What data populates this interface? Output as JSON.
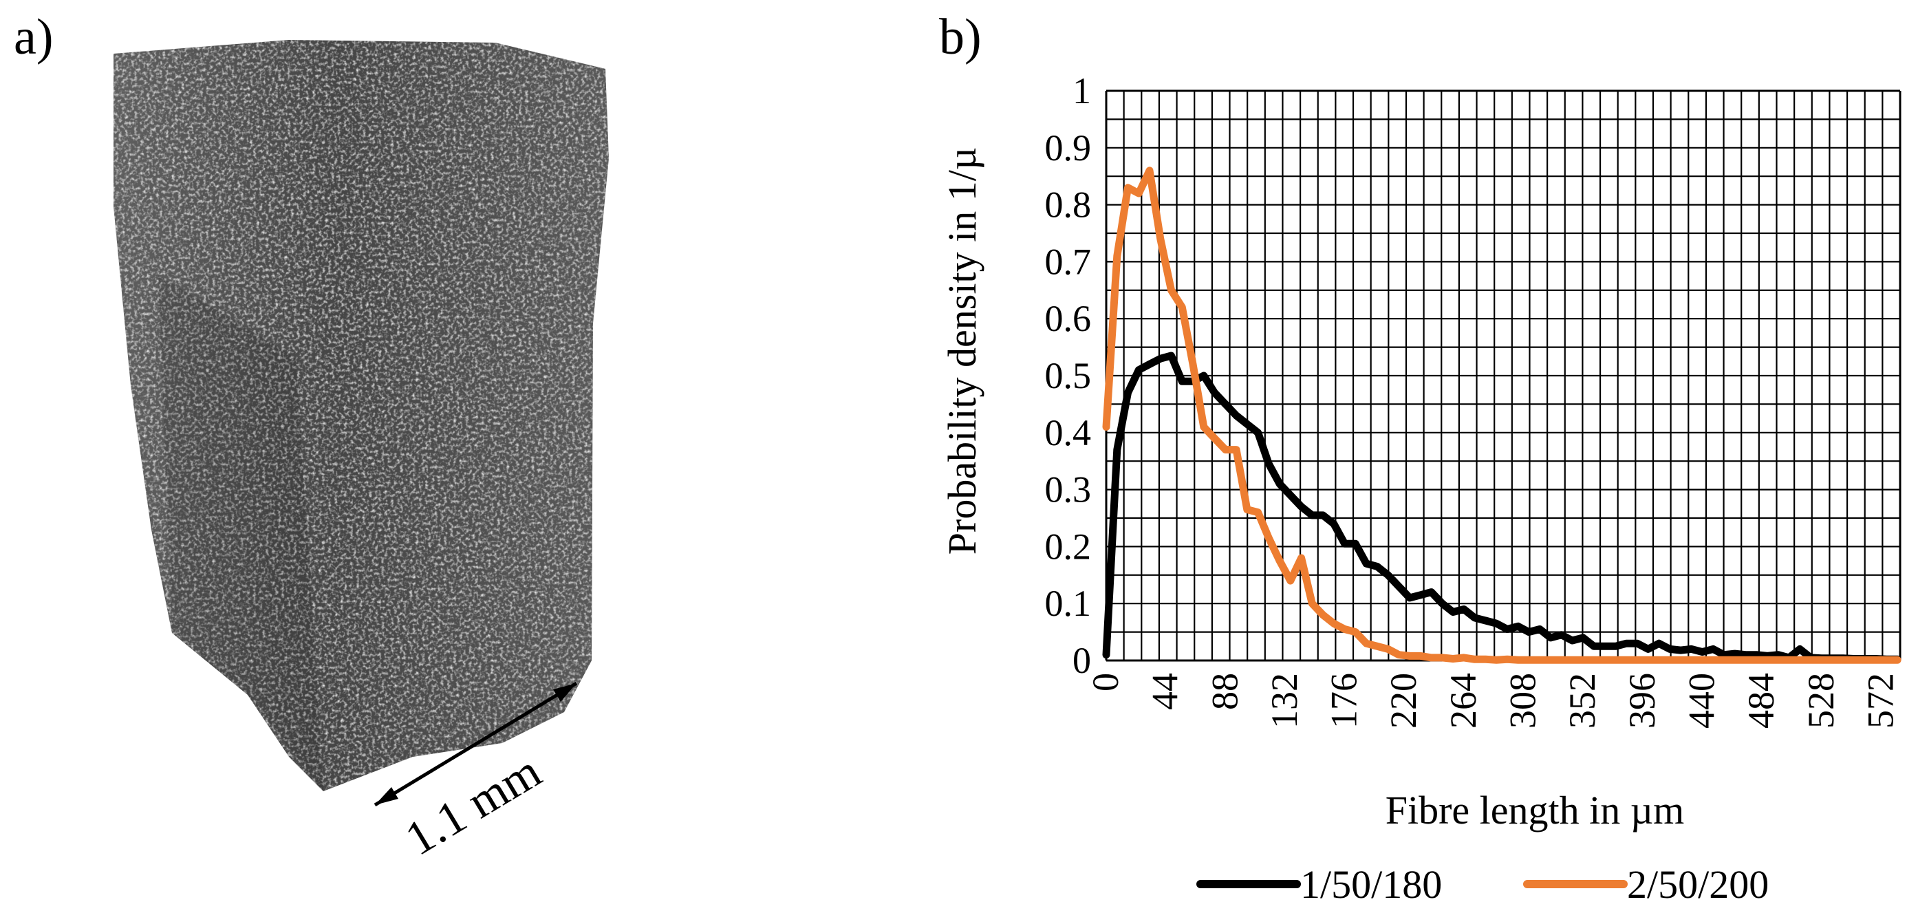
{
  "panels": {
    "a": {
      "label": "a)",
      "scale_label": "1.1 mm"
    },
    "b": {
      "label": "b)"
    }
  },
  "colors": {
    "series_1": "#000000",
    "series_2": "#ED7D31",
    "grid": "#000000",
    "specimen_dark": "#3c3c3c",
    "specimen_mid": "#5a5a5a",
    "specimen_light": "#bdbdbd"
  },
  "chart_data": {
    "type": "line",
    "title": "",
    "xlabel": "Fibre length in µm",
    "ylabel": "Probability density in 1/µ",
    "xlim": [
      0,
      586
    ],
    "ylim": [
      0,
      1
    ],
    "grid": true,
    "legend_position": "bottom",
    "x_ticks": [
      0,
      44,
      88,
      132,
      176,
      220,
      264,
      308,
      352,
      396,
      440,
      484,
      528,
      572
    ],
    "x_tick_labels": [
      "0",
      "44",
      "88",
      "132",
      "176",
      "220",
      "264",
      "308",
      "352",
      "396",
      "440",
      "484",
      "528",
      "572"
    ],
    "y_ticks": [
      0,
      0.1,
      0.2,
      0.3,
      0.4,
      0.5,
      0.6,
      0.7,
      0.8,
      0.9,
      1
    ],
    "y_tick_labels": [
      "0",
      "0.1",
      "0.2",
      "0.3",
      "0.4",
      "0.5",
      "0.6",
      "0.7",
      "0.8",
      "0.9",
      "1"
    ],
    "series": [
      {
        "name": "1/50/180",
        "color": "#000000",
        "x": [
          0,
          8,
          16,
          24,
          32,
          40,
          48,
          56,
          64,
          72,
          80,
          88,
          96,
          104,
          112,
          120,
          128,
          136,
          144,
          152,
          160,
          168,
          176,
          184,
          192,
          200,
          208,
          216,
          224,
          232,
          240,
          248,
          256,
          264,
          272,
          280,
          288,
          296,
          304,
          312,
          320,
          328,
          336,
          344,
          352,
          360,
          368,
          376,
          384,
          392,
          400,
          408,
          416,
          424,
          432,
          440,
          448,
          456,
          464,
          472,
          480,
          488,
          496,
          504,
          512,
          520,
          528,
          536,
          544,
          552,
          560,
          568,
          576,
          584
        ],
        "values": [
          0.01,
          0.37,
          0.47,
          0.51,
          0.52,
          0.53,
          0.535,
          0.49,
          0.49,
          0.5,
          0.47,
          0.45,
          0.43,
          0.415,
          0.4,
          0.345,
          0.31,
          0.29,
          0.27,
          0.255,
          0.255,
          0.24,
          0.205,
          0.205,
          0.17,
          0.165,
          0.15,
          0.13,
          0.11,
          0.115,
          0.12,
          0.1,
          0.085,
          0.09,
          0.075,
          0.07,
          0.065,
          0.055,
          0.06,
          0.05,
          0.055,
          0.04,
          0.045,
          0.035,
          0.04,
          0.025,
          0.025,
          0.025,
          0.03,
          0.03,
          0.02,
          0.03,
          0.02,
          0.018,
          0.02,
          0.015,
          0.02,
          0.01,
          0.012,
          0.01,
          0.01,
          0.008,
          0.01,
          0.005,
          0.02,
          0.005,
          0.004,
          0.004,
          0.004,
          0.003,
          0.003,
          0.003,
          0.002,
          0.002
        ]
      },
      {
        "name": "2/50/200",
        "color": "#ED7D31",
        "x": [
          0,
          8,
          16,
          24,
          32,
          40,
          48,
          56,
          64,
          72,
          80,
          88,
          96,
          104,
          112,
          120,
          128,
          136,
          144,
          152,
          160,
          168,
          176,
          184,
          192,
          200,
          208,
          216,
          224,
          232,
          240,
          248,
          256,
          264,
          272,
          280,
          288,
          296,
          304,
          312,
          320,
          328,
          336,
          344,
          352,
          360,
          368,
          376,
          384,
          392,
          400,
          408,
          416,
          424,
          432,
          440,
          448,
          456,
          464,
          472,
          480,
          488,
          496,
          504,
          512,
          520,
          528,
          536,
          544,
          552,
          560,
          568,
          576,
          584
        ],
        "values": [
          0.41,
          0.71,
          0.83,
          0.82,
          0.86,
          0.74,
          0.65,
          0.62,
          0.52,
          0.41,
          0.39,
          0.37,
          0.37,
          0.265,
          0.26,
          0.215,
          0.175,
          0.14,
          0.18,
          0.1,
          0.08,
          0.065,
          0.055,
          0.05,
          0.03,
          0.025,
          0.02,
          0.01,
          0.008,
          0.008,
          0.005,
          0.005,
          0.003,
          0.005,
          0.002,
          0.002,
          0.001,
          0.002,
          0.001,
          0.001,
          0.001,
          0.001,
          0.001,
          0.001,
          0.001,
          0.001,
          0.001,
          0.001,
          0.001,
          0.001,
          0.001,
          0.001,
          0.001,
          0.001,
          0.001,
          0.001,
          0.001,
          0.001,
          0.001,
          0.001,
          0.001,
          0.001,
          0.001,
          0.001,
          0.001,
          0.001,
          0.001,
          0.001,
          0.001,
          0.001,
          0.001,
          0.001,
          0.001,
          0.001
        ]
      }
    ]
  }
}
